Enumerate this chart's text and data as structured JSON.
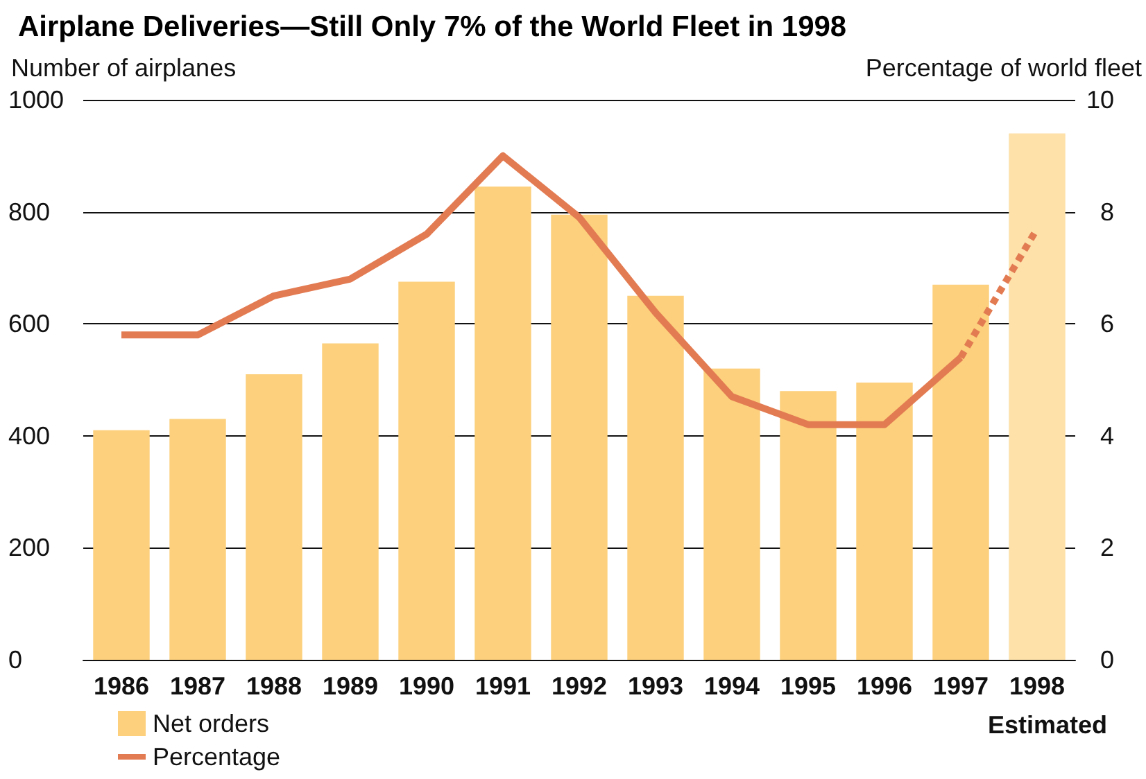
{
  "chart_data": {
    "type": "bar",
    "title": "Airplane Deliveries—Still Only 7% of the World Fleet in 1998",
    "ylabel": "Number of airplanes",
    "y2label": "Percentage of world fleet",
    "categories": [
      "1986",
      "1987",
      "1988",
      "1989",
      "1990",
      "1991",
      "1992",
      "1993",
      "1994",
      "1995",
      "1996",
      "1997",
      "1998"
    ],
    "series": [
      {
        "name": "Net orders",
        "color": "#fcd07c",
        "colors": [
          "#fcd07c",
          "#fcd07c",
          "#fcd07c",
          "#fcd07c",
          "#fcd07c",
          "#fcd07c",
          "#fcd07c",
          "#fcd07c",
          "#fcd07c",
          "#fcd07c",
          "#fcd07c",
          "#fcd07c",
          "#fde1a9"
        ],
        "values": [
          410,
          430,
          510,
          565,
          675,
          845,
          795,
          650,
          520,
          480,
          495,
          670,
          940
        ]
      },
      {
        "name": "Percentage",
        "type": "line",
        "axis": "y2",
        "color": "#e37b52",
        "line_style": "solid",
        "values": [
          5.8,
          5.8,
          6.5,
          6.8,
          7.6,
          9.0,
          7.9,
          6.2,
          4.7,
          4.2,
          4.2,
          5.4,
          null
        ]
      },
      {
        "type": "line",
        "axis": "y2",
        "color": "#e37b52",
        "line_style": "dotted",
        "values": [
          null,
          null,
          null,
          null,
          null,
          null,
          null,
          null,
          null,
          null,
          null,
          5.4,
          7.7
        ]
      }
    ],
    "ylim": [
      0,
      1000
    ],
    "yticks": [
      0,
      200,
      400,
      600,
      800,
      1000
    ],
    "y2lim": [
      0,
      10
    ],
    "y2ticks": [
      0,
      2,
      4,
      6,
      8,
      10
    ],
    "grid": "y",
    "legend": "bottom left",
    "marker": "none",
    "annotations": [
      "Estimated"
    ]
  }
}
